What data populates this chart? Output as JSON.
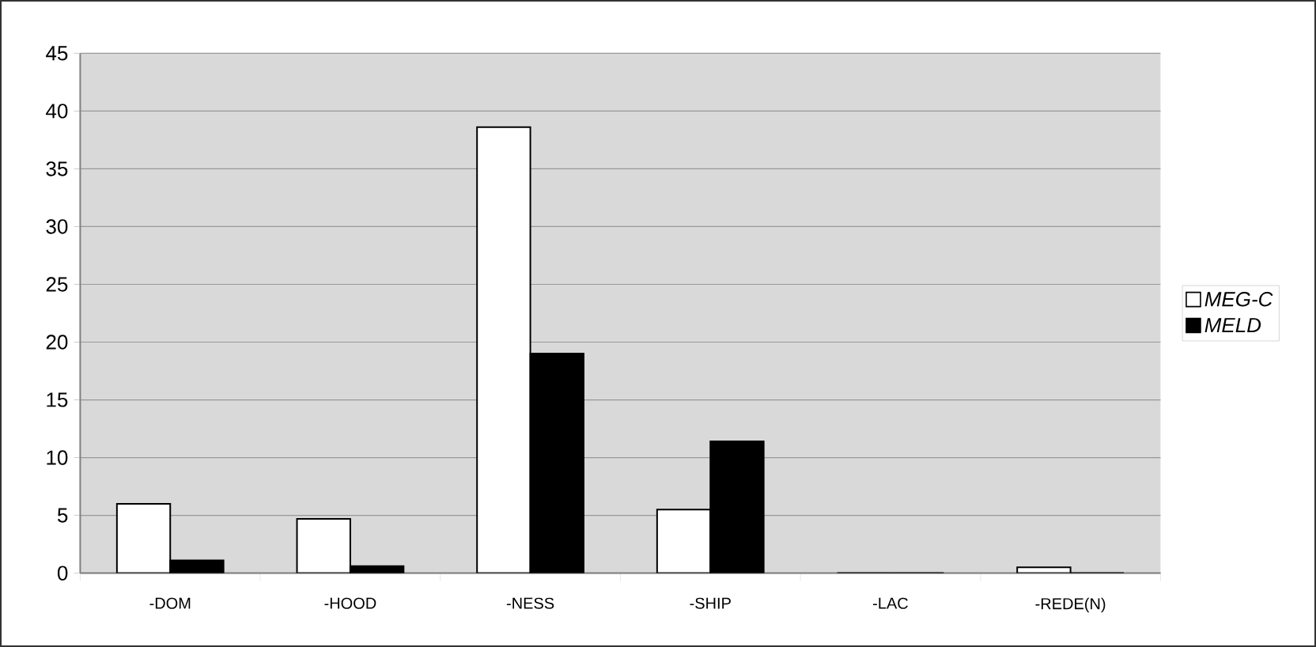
{
  "chart_data": {
    "type": "bar",
    "categories": [
      "-DOM",
      "-HOOD",
      "-NESS",
      "-SHIP",
      "-LAC",
      "-REDE(N)"
    ],
    "series": [
      {
        "name": "MEG-C",
        "color": "#ffffff",
        "values": [
          6.0,
          4.7,
          38.6,
          5.5,
          0,
          0.5
        ]
      },
      {
        "name": "MELD",
        "color": "#000000",
        "values": [
          1.1,
          0.6,
          19.0,
          11.4,
          0,
          0
        ]
      }
    ],
    "ylim": [
      0,
      45
    ],
    "yticks": [
      0,
      5,
      10,
      15,
      20,
      25,
      30,
      35,
      40,
      45
    ],
    "grid": "y",
    "legend": "right"
  }
}
